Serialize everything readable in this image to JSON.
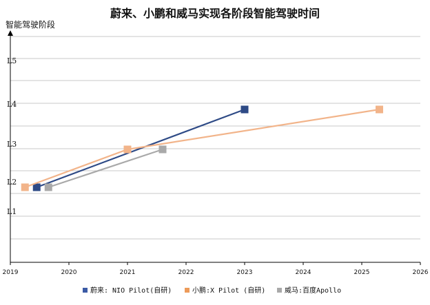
{
  "chart_data": {
    "type": "line",
    "title": "蔚来、小鹏和威马实现各阶段智能驾驶时间",
    "ylabel": "智能驾驶阶段",
    "xlabel": "",
    "y_categories": [
      "L1",
      "L2",
      "L3",
      "L4",
      "L5"
    ],
    "x_ticks": [
      "2019",
      "2020",
      "2021",
      "2022",
      "2023",
      "2024",
      "2025",
      "2026"
    ],
    "xlim": [
      2019,
      2026
    ],
    "grid": true,
    "legend_position": "bottom",
    "series": [
      {
        "name": "蔚来: NIO Pilot(自研)",
        "color": "#2e4a86",
        "x": [
          2019.45,
          2023.0
        ],
        "y": [
          "L2",
          "L4"
        ]
      },
      {
        "name": "小鹏:X Pilot (自研)",
        "color": "#f2b48a",
        "x": [
          2019.25,
          2021.0,
          2025.3
        ],
        "y": [
          "L2",
          "L3",
          "L4"
        ]
      },
      {
        "name": "威马:百度Apollo",
        "color": "#a9a9a9",
        "x": [
          2019.65,
          2021.6
        ],
        "y": [
          "L2",
          "L3"
        ]
      }
    ]
  }
}
